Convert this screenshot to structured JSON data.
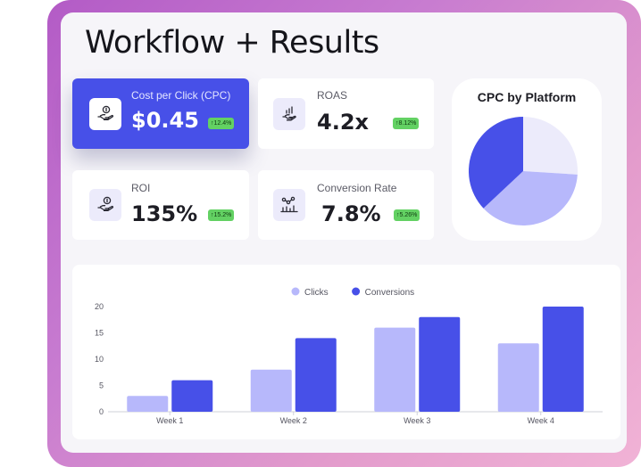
{
  "title": "Workflow + Results",
  "metrics": {
    "cpc": {
      "label": "Cost per Click (CPC)",
      "value": "$0.45",
      "change": "↑12.4%"
    },
    "roas": {
      "label": "ROAS",
      "value": "4.2x",
      "change": "↑8.12%"
    },
    "roi": {
      "label": "ROI",
      "value": "135%",
      "change": "↑15.2%"
    },
    "conversion": {
      "label": "Conversion Rate",
      "value": "7.8%",
      "change": "↑5.26%"
    }
  },
  "colors": {
    "accent": "#4750e8",
    "light_accent": "#b7b8fb",
    "pale_accent": "#ecebfb",
    "positive": "#63d163"
  },
  "pie": {
    "title": "CPC by Platform",
    "chart_data": {
      "type": "pie",
      "values": [
        26,
        37,
        37
      ],
      "colors": [
        "#ecebfb",
        "#b7b8fb",
        "#4750e8"
      ]
    }
  },
  "chart_data": {
    "type": "bar",
    "categories": [
      "Week 1",
      "Week 2",
      "Week 3",
      "Week 4"
    ],
    "series": [
      {
        "name": "Clicks",
        "values": [
          3,
          8,
          16,
          13
        ],
        "color": "#b7b8fb"
      },
      {
        "name": "Conversions",
        "values": [
          6,
          14,
          18,
          20
        ],
        "color": "#4750e8"
      }
    ],
    "ylim": [
      0,
      20
    ],
    "yticks": [
      "0",
      "5",
      "10",
      "15",
      "20"
    ],
    "legend": "top-center",
    "grid": false
  }
}
